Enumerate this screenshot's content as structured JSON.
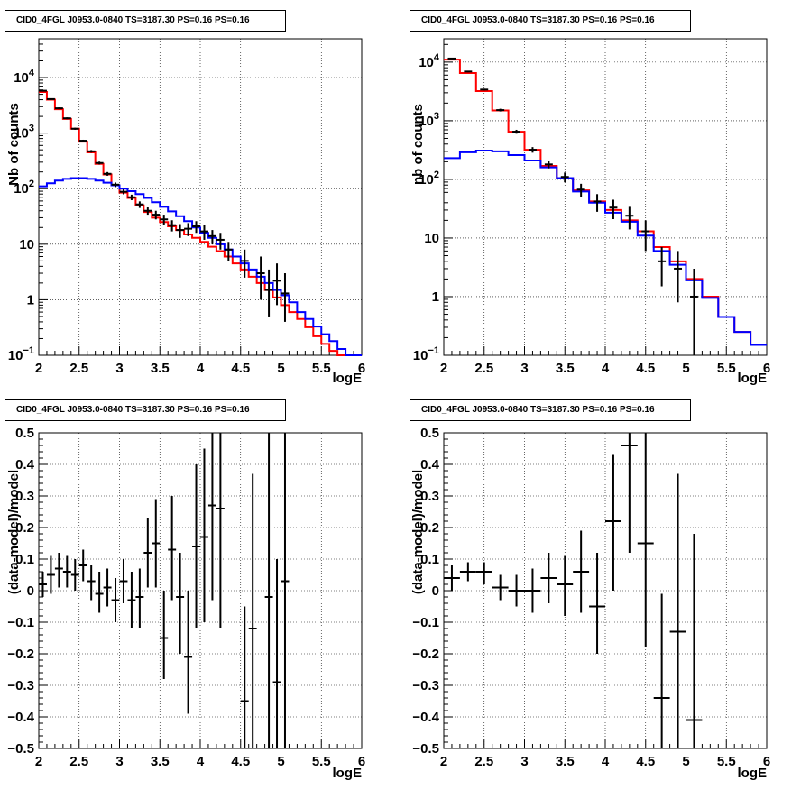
{
  "chart_data": [
    {
      "type": "histogram",
      "title": "CID0_4FGL J0953.0-0840 TS=3187.30 PS=0.16 PS=0.16",
      "xlabel": "logE",
      "ylabel": "Nb of counts",
      "xlim": [
        2,
        6
      ],
      "ylim": [
        0.1,
        50000
      ],
      "yscale": "log",
      "grid": true,
      "xticks": [
        "2",
        "2.5",
        "3",
        "3.5",
        "4",
        "4.5",
        "5",
        "5.5",
        "6"
      ],
      "yticks": [
        {
          "v": 0.1,
          "label": "10",
          "exp": "−1"
        },
        {
          "v": 1,
          "label": "1",
          "exp": ""
        },
        {
          "v": 10,
          "label": "10",
          "exp": ""
        },
        {
          "v": 100,
          "label": "10",
          "exp": "2"
        },
        {
          "v": 1000,
          "label": "10",
          "exp": "3"
        },
        {
          "v": 10000,
          "label": "10",
          "exp": "4"
        }
      ],
      "series": [
        {
          "color": "#ff0000",
          "style": "step",
          "edges": [
            2,
            2.1,
            2.2,
            2.3,
            2.4,
            2.5,
            2.6,
            2.7,
            2.8,
            2.9,
            3,
            3.1,
            3.2,
            3.3,
            3.4,
            3.5,
            3.6,
            3.7,
            3.8,
            3.9,
            4,
            4.1,
            4.2,
            4.3,
            4.4,
            4.5,
            4.6,
            4.7,
            4.8,
            4.9,
            5,
            5.1,
            5.2,
            5.3,
            5.4,
            5.5,
            5.6,
            5.7,
            5.8,
            5.9,
            6
          ],
          "values": [
            5500,
            4000,
            2700,
            1800,
            1200,
            700,
            450,
            280,
            180,
            115,
            85,
            68,
            50,
            38,
            30,
            25,
            21,
            18,
            15,
            13,
            11,
            9,
            7.5,
            6,
            4.5,
            3.5,
            2.6,
            2,
            1.5,
            1.1,
            0.8,
            0.6,
            0.45,
            0.32,
            0.22,
            0.16,
            0.12,
            0.09,
            0.08,
            0.07
          ]
        },
        {
          "color": "#0000ff",
          "style": "step",
          "edges": [
            2,
            2.1,
            2.2,
            2.3,
            2.4,
            2.5,
            2.6,
            2.7,
            2.8,
            2.9,
            3,
            3.1,
            3.2,
            3.3,
            3.4,
            3.5,
            3.6,
            3.7,
            3.8,
            3.9,
            4,
            4.1,
            4.2,
            4.3,
            4.4,
            4.5,
            4.6,
            4.7,
            4.8,
            4.9,
            5,
            5.1,
            5.2,
            5.3,
            5.4,
            5.5,
            5.6,
            5.7,
            5.8,
            5.9,
            6
          ],
          "values": [
            110,
            125,
            140,
            150,
            155,
            155,
            150,
            140,
            128,
            115,
            100,
            90,
            80,
            68,
            57,
            47,
            39,
            32,
            26,
            20,
            16,
            13,
            10,
            8,
            6,
            4.5,
            3.5,
            2.6,
            2,
            1.5,
            1.2,
            0.9,
            0.6,
            0.45,
            0.33,
            0.24,
            0.18,
            0.13,
            0.1,
            0.08
          ]
        },
        {
          "color": "#000000",
          "style": "errors",
          "points": [
            [
              2.05,
              5800,
              6000,
              5600
            ],
            [
              2.15,
              4100,
              4200,
              4000
            ],
            [
              2.25,
              2800,
              2900,
              2700
            ],
            [
              2.35,
              1850,
              1920,
              1780
            ],
            [
              2.45,
              1200,
              1250,
              1150
            ],
            [
              2.55,
              730,
              760,
              700
            ],
            [
              2.65,
              470,
              495,
              445
            ],
            [
              2.75,
              290,
              307,
              273
            ],
            [
              2.85,
              185,
              199,
              171
            ],
            [
              2.95,
              118,
              129,
              107
            ],
            [
              3.05,
              88,
              97,
              79
            ],
            [
              3.15,
              70,
              78,
              62
            ],
            [
              3.25,
              52,
              59,
              45
            ],
            [
              3.35,
              40,
              46,
              34
            ],
            [
              3.45,
              34,
              40,
              28
            ],
            [
              3.55,
              28,
              34,
              22
            ],
            [
              3.65,
              22,
              27,
              17
            ],
            [
              3.75,
              18,
              23,
              13
            ],
            [
              3.85,
              19,
              24,
              14
            ],
            [
              3.95,
              21,
              26,
              16
            ],
            [
              4.05,
              17,
              22,
              12
            ],
            [
              4.15,
              14,
              18,
              10
            ],
            [
              4.25,
              12,
              16,
              8
            ],
            [
              4.35,
              8,
              11,
              5
            ],
            [
              4.55,
              5,
              8,
              2.5
            ],
            [
              4.75,
              3,
              6,
              1
            ],
            [
              4.85,
              1.5,
              3.5,
              0.5
            ],
            [
              4.95,
              2.2,
              4.5,
              0.8
            ],
            [
              5.05,
              1.3,
              3,
              0.4
            ]
          ]
        }
      ]
    },
    {
      "type": "histogram",
      "title": "CID0_4FGL J0953.0-0840 TS=3187.30 PS=0.16 PS=0.16",
      "xlabel": "logE",
      "ylabel": "nb of counts",
      "xlim": [
        2,
        6
      ],
      "ylim": [
        0.1,
        25000
      ],
      "yscale": "log",
      "grid": true,
      "xticks": [
        "2",
        "2.5",
        "3",
        "3.5",
        "4",
        "4.5",
        "5",
        "5.5",
        "6"
      ],
      "yticks": [
        {
          "v": 0.1,
          "label": "10",
          "exp": "−1"
        },
        {
          "v": 1,
          "label": "1",
          "exp": ""
        },
        {
          "v": 10,
          "label": "10",
          "exp": ""
        },
        {
          "v": 100,
          "label": "10",
          "exp": "2"
        },
        {
          "v": 1000,
          "label": "10",
          "exp": "3"
        },
        {
          "v": 10000,
          "label": "10",
          "exp": "4"
        }
      ],
      "series": [
        {
          "color": "#ff0000",
          "style": "step",
          "edges": [
            2,
            2.2,
            2.4,
            2.6,
            2.8,
            3,
            3.2,
            3.4,
            3.6,
            3.8,
            4,
            4.2,
            4.4,
            4.6,
            4.8,
            5,
            5.2,
            5.4,
            5.6,
            5.8,
            6
          ],
          "values": [
            11000,
            6500,
            3200,
            1500,
            650,
            320,
            170,
            105,
            65,
            42,
            30,
            20,
            13,
            7,
            4,
            2,
            1,
            0.45,
            0.25,
            0.15
          ]
        },
        {
          "color": "#0000ff",
          "style": "step",
          "edges": [
            2,
            2.2,
            2.4,
            2.6,
            2.8,
            3,
            3.2,
            3.4,
            3.6,
            3.8,
            4,
            4.2,
            4.4,
            4.6,
            4.8,
            5,
            5.2,
            5.4,
            5.6,
            5.8,
            6
          ],
          "values": [
            230,
            290,
            310,
            300,
            260,
            210,
            160,
            105,
            62,
            40,
            27,
            19,
            11,
            6,
            3.5,
            1.9,
            0.95,
            0.45,
            0.25,
            0.15
          ]
        },
        {
          "color": "#000000",
          "style": "errors",
          "points": [
            [
              2.1,
              11500,
              11800,
              11200
            ],
            [
              2.3,
              6900,
              7100,
              6700
            ],
            [
              2.5,
              3400,
              3520,
              3280
            ],
            [
              2.7,
              1520,
              1600,
              1440
            ],
            [
              2.9,
              650,
              700,
              600
            ],
            [
              3.1,
              320,
              355,
              285
            ],
            [
              3.3,
              180,
              206,
              154
            ],
            [
              3.5,
              110,
              131,
              89
            ],
            [
              3.7,
              67,
              84,
              50
            ],
            [
              3.9,
              42,
              56,
              28
            ],
            [
              4.1,
              33,
              45,
              21
            ],
            [
              4.3,
              24,
              34,
              14
            ],
            [
              4.5,
              13,
              20,
              6
            ],
            [
              4.7,
              4,
              7,
              1.5
            ],
            [
              4.9,
              3,
              6,
              0.8
            ],
            [
              5.1,
              1,
              3,
              0.1
            ]
          ]
        }
      ]
    },
    {
      "type": "scatter",
      "title": "CID0_4FGL J0953.0-0840 TS=3187.30 PS=0.16 PS=0.16",
      "xlabel": "logE",
      "ylabel": "(data-model)/model",
      "xlim": [
        2,
        6
      ],
      "ylim": [
        -0.5,
        0.5
      ],
      "yscale": "linear",
      "grid": true,
      "xticks": [
        "2",
        "2.5",
        "3",
        "3.5",
        "4",
        "4.5",
        "5",
        "5.5",
        "6"
      ],
      "yticks": [
        {
          "v": -0.5,
          "label": "−0.5",
          "exp": ""
        },
        {
          "v": -0.4,
          "label": "−0.4",
          "exp": ""
        },
        {
          "v": -0.3,
          "label": "−0.3",
          "exp": ""
        },
        {
          "v": -0.2,
          "label": "−0.2",
          "exp": ""
        },
        {
          "v": -0.1,
          "label": "−0.1",
          "exp": ""
        },
        {
          "v": 0,
          "label": "0",
          "exp": ""
        },
        {
          "v": 0.1,
          "label": "0.1",
          "exp": ""
        },
        {
          "v": 0.2,
          "label": "0.2",
          "exp": ""
        },
        {
          "v": 0.3,
          "label": "0.3",
          "exp": ""
        },
        {
          "v": 0.4,
          "label": "0.4",
          "exp": ""
        },
        {
          "v": 0.5,
          "label": "0.5",
          "exp": ""
        }
      ],
      "series": [
        {
          "color": "#000000",
          "style": "errors",
          "half_width": 0.05,
          "points": [
            [
              2.05,
              0.02,
              0.06,
              -0.02
            ],
            [
              2.15,
              0.05,
              0.11,
              -0.01
            ],
            [
              2.25,
              0.07,
              0.12,
              0.01
            ],
            [
              2.35,
              0.06,
              0.11,
              0.01
            ],
            [
              2.45,
              0.05,
              0.1,
              0.0
            ],
            [
              2.55,
              0.08,
              0.13,
              0.03
            ],
            [
              2.65,
              0.03,
              0.08,
              -0.03
            ],
            [
              2.75,
              -0.01,
              0.06,
              -0.07
            ],
            [
              2.85,
              0.01,
              0.07,
              -0.05
            ],
            [
              2.95,
              -0.03,
              0.04,
              -0.1
            ],
            [
              3.05,
              0.03,
              0.1,
              -0.04
            ],
            [
              3.15,
              -0.03,
              0.06,
              -0.12
            ],
            [
              3.25,
              -0.02,
              0.07,
              -0.12
            ],
            [
              3.35,
              0.12,
              0.23,
              0.01
            ],
            [
              3.45,
              0.15,
              0.29,
              0.01
            ],
            [
              3.55,
              -0.15,
              0.0,
              -0.28
            ],
            [
              3.65,
              0.13,
              0.3,
              -0.03
            ],
            [
              3.75,
              -0.02,
              0.12,
              -0.2
            ],
            [
              3.85,
              -0.21,
              0.0,
              -0.39
            ],
            [
              3.95,
              0.14,
              0.4,
              -0.12
            ],
            [
              4.05,
              0.17,
              0.45,
              -0.1
            ],
            [
              4.15,
              0.27,
              0.5,
              -0.03
            ],
            [
              4.25,
              0.26,
              0.5,
              -0.12
            ],
            [
              4.55,
              -0.35,
              -0.05,
              -0.5
            ],
            [
              4.65,
              -0.12,
              0.37,
              -0.5
            ],
            [
              4.85,
              -0.02,
              0.5,
              -0.5
            ],
            [
              4.95,
              -0.29,
              0.1,
              -0.5
            ],
            [
              5.05,
              0.03,
              0.5,
              -0.5
            ]
          ]
        }
      ]
    },
    {
      "type": "scatter",
      "title": "CID0_4FGL J0953.0-0840 TS=3187.30 PS=0.16 PS=0.16",
      "xlabel": "logE",
      "ylabel": "(data-model)/model",
      "xlim": [
        2,
        6
      ],
      "ylim": [
        -0.5,
        0.5
      ],
      "yscale": "linear",
      "grid": true,
      "xticks": [
        "2",
        "2.5",
        "3",
        "3.5",
        "4",
        "4.5",
        "5",
        "5.5",
        "6"
      ],
      "yticks": [
        {
          "v": -0.5,
          "label": "−0.5",
          "exp": ""
        },
        {
          "v": -0.4,
          "label": "−0.4",
          "exp": ""
        },
        {
          "v": -0.3,
          "label": "−0.3",
          "exp": ""
        },
        {
          "v": -0.2,
          "label": "−0.2",
          "exp": ""
        },
        {
          "v": -0.1,
          "label": "−0.1",
          "exp": ""
        },
        {
          "v": 0,
          "label": "0",
          "exp": ""
        },
        {
          "v": 0.1,
          "label": "0.1",
          "exp": ""
        },
        {
          "v": 0.2,
          "label": "0.2",
          "exp": ""
        },
        {
          "v": 0.3,
          "label": "0.3",
          "exp": ""
        },
        {
          "v": 0.4,
          "label": "0.4",
          "exp": ""
        },
        {
          "v": 0.5,
          "label": "0.5",
          "exp": ""
        }
      ],
      "series": [
        {
          "color": "#000000",
          "style": "errors",
          "half_width": 0.1,
          "points": [
            [
              2.1,
              0.04,
              0.08,
              0.0
            ],
            [
              2.3,
              0.06,
              0.09,
              0.03
            ],
            [
              2.5,
              0.06,
              0.09,
              0.02
            ],
            [
              2.7,
              0.01,
              0.05,
              -0.03
            ],
            [
              2.9,
              0.0,
              0.05,
              -0.05
            ],
            [
              3.1,
              0.0,
              0.07,
              -0.07
            ],
            [
              3.3,
              0.04,
              0.12,
              -0.04
            ],
            [
              3.5,
              0.02,
              0.11,
              -0.08
            ],
            [
              3.7,
              0.06,
              0.19,
              -0.07
            ],
            [
              3.9,
              -0.05,
              0.12,
              -0.2
            ],
            [
              4.1,
              0.22,
              0.43,
              0.0
            ],
            [
              4.3,
              0.46,
              0.5,
              0.12
            ],
            [
              4.5,
              0.15,
              0.5,
              -0.18
            ],
            [
              4.7,
              -0.34,
              -0.01,
              -0.5
            ],
            [
              4.9,
              -0.13,
              0.37,
              -0.5
            ],
            [
              5.1,
              -0.41,
              0.18,
              -0.5
            ]
          ]
        }
      ]
    }
  ]
}
